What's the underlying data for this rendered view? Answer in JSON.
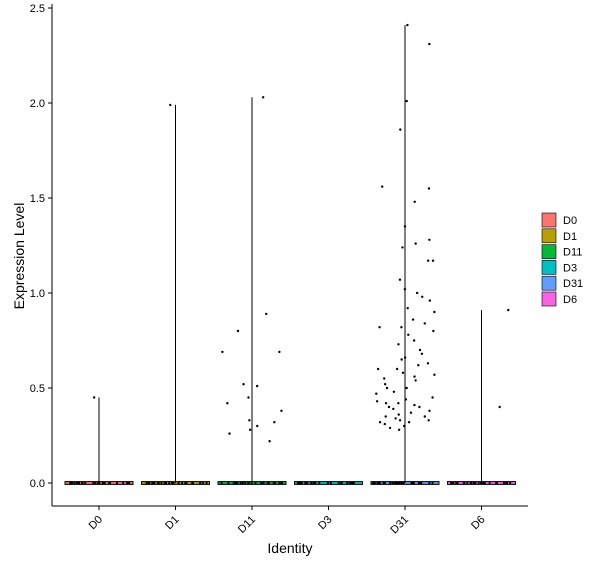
{
  "chart_data": {
    "type": "violin",
    "xlabel": "Identity",
    "ylabel": "Expression Level",
    "categories": [
      "D0",
      "D1",
      "D11",
      "D3",
      "D31",
      "D6"
    ],
    "colors": {
      "D0": "#F8766D",
      "D1": "#B79F00",
      "D11": "#00BA38",
      "D3": "#00BFC4",
      "D31": "#619CFF",
      "D6": "#F564E3"
    },
    "ylim": [
      -0.12,
      2.52
    ],
    "yticks": [
      0.0,
      0.5,
      1.0,
      1.5,
      2.0,
      2.5
    ],
    "ytick_labels": [
      "0.0",
      "0.5",
      "1.0",
      "1.5",
      "2.0",
      "2.5"
    ],
    "legend": {
      "position": "right",
      "entries": [
        "D0",
        "D1",
        "D11",
        "D3",
        "D31",
        "D6"
      ]
    },
    "series": [
      {
        "category": "D0",
        "max": 0.45,
        "points": [
          0.45
        ]
      },
      {
        "category": "D1",
        "max": 1.99,
        "points": [
          1.99
        ]
      },
      {
        "category": "D11",
        "max": 2.03,
        "points": [
          2.03,
          0.89,
          0.8,
          0.69,
          0.69,
          0.52,
          0.51,
          0.45,
          0.42,
          0.38,
          0.33,
          0.32,
          0.3,
          0.28,
          0.26,
          0.22
        ]
      },
      {
        "category": "D3",
        "max": 0.0,
        "points": []
      },
      {
        "category": "D31",
        "max": 2.41,
        "points": [
          2.41,
          2.31,
          2.01,
          1.86,
          1.56,
          1.55,
          1.48,
          1.35,
          1.28,
          1.26,
          1.24,
          1.17,
          1.17,
          1.07,
          1.02,
          1.0,
          0.98,
          0.96,
          0.92,
          0.9,
          0.86,
          0.84,
          0.82,
          0.82,
          0.8,
          0.78,
          0.75,
          0.73,
          0.7,
          0.68,
          0.66,
          0.65,
          0.63,
          0.62,
          0.6,
          0.6,
          0.58,
          0.57,
          0.56,
          0.55,
          0.54,
          0.52,
          0.5,
          0.5,
          0.48,
          0.47,
          0.45,
          0.44,
          0.43,
          0.42,
          0.42,
          0.41,
          0.4,
          0.4,
          0.39,
          0.38,
          0.37,
          0.36,
          0.35,
          0.35,
          0.34,
          0.33,
          0.33,
          0.32,
          0.32,
          0.31,
          0.3,
          0.29,
          0.28
        ]
      },
      {
        "category": "D6",
        "max": 0.91,
        "points": [
          0.91,
          0.4
        ]
      }
    ]
  }
}
